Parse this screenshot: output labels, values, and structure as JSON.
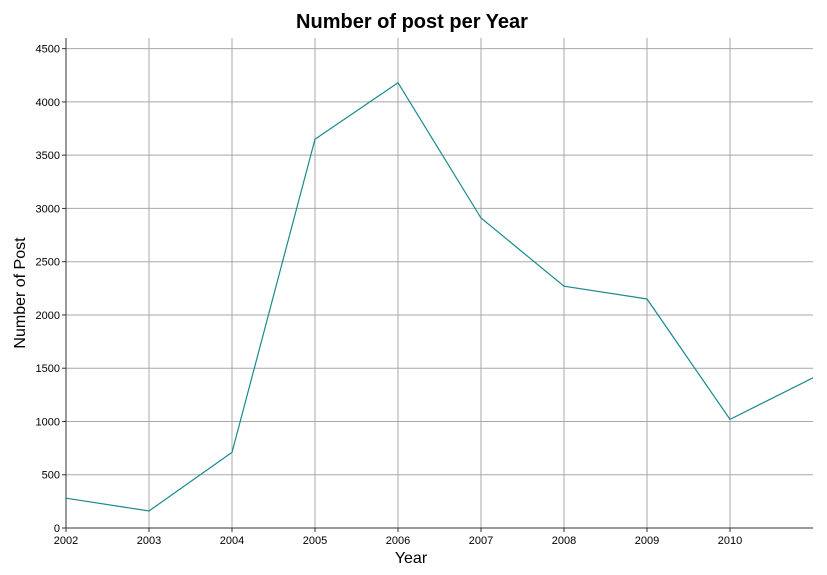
{
  "chart_data": {
    "type": "line",
    "title": "Number of post per Year",
    "xlabel": "Year",
    "ylabel": "Number of Post",
    "x": [
      2002,
      2003,
      2004,
      2005,
      2006,
      2007,
      2008,
      2009,
      2010,
      2011
    ],
    "x_tick_values": [
      2002,
      2003,
      2004,
      2005,
      2006,
      2007,
      2008,
      2009,
      2010
    ],
    "x_tick_labels": [
      "2002",
      "2003",
      "2004",
      "2005",
      "2006",
      "2007",
      "2008",
      "2009",
      "2010"
    ],
    "y_ticks": [
      0,
      500,
      1000,
      1500,
      2000,
      2500,
      3000,
      3500,
      4000,
      4500
    ],
    "xlim": [
      2002,
      2011
    ],
    "ylim": [
      0,
      4600
    ],
    "grid": true,
    "series": [
      {
        "values": [
          280,
          160,
          710,
          3650,
          4180,
          2910,
          2270,
          2150,
          1020,
          1410
        ],
        "color": "#1a8a8c"
      }
    ]
  }
}
